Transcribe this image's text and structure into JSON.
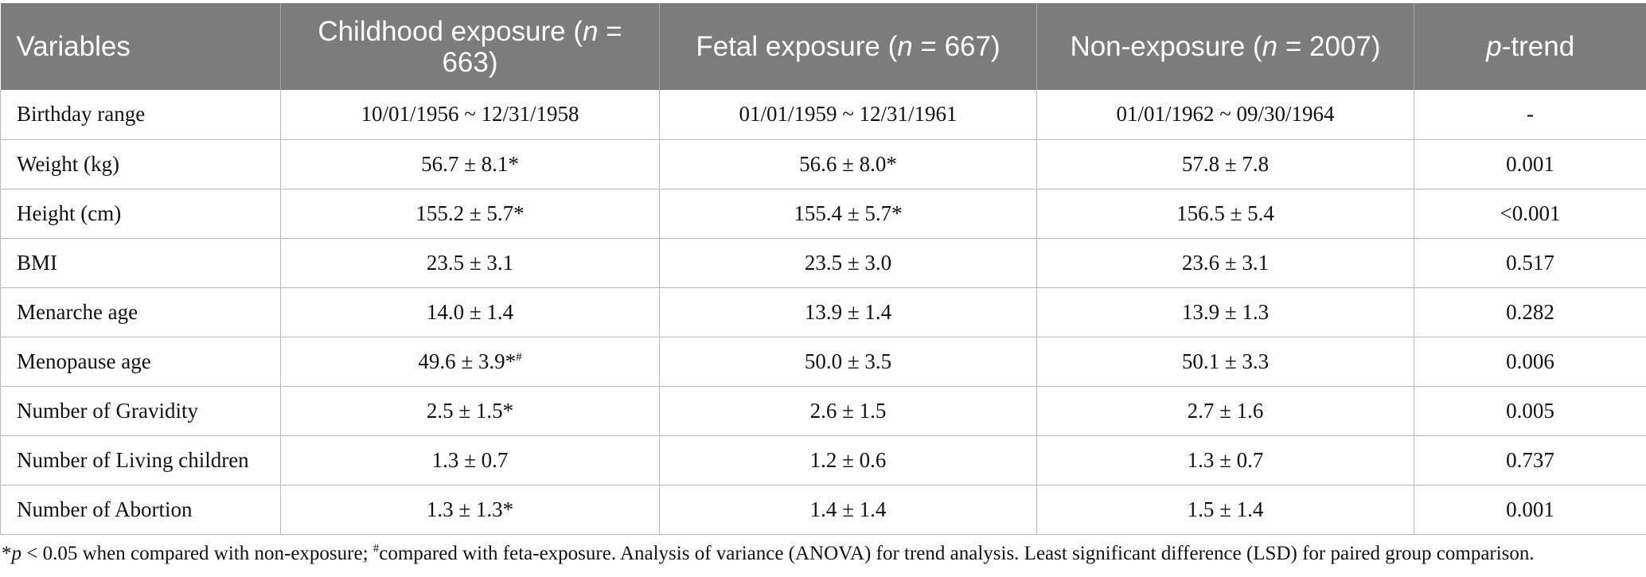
{
  "table": {
    "headers": [
      {
        "pre": "Variables",
        "italic": "",
        "post": ""
      },
      {
        "pre": "Childhood exposure (",
        "italic": "n",
        "post": " = 663)"
      },
      {
        "pre": "Fetal exposure (",
        "italic": "n",
        "post": " = 667)"
      },
      {
        "pre": "Non-exposure (",
        "italic": "n",
        "post": " = 2007)"
      },
      {
        "pre": "",
        "italic": "p",
        "post": "-trend"
      }
    ],
    "rows": [
      [
        "Birthday range",
        "10/01/1956 ~ 12/31/1958",
        "01/01/1959 ~ 12/31/1961",
        "01/01/1962 ~ 09/30/1964",
        "-"
      ],
      [
        "Weight (kg)",
        "56.7 ± 8.1*",
        "56.6 ± 8.0*",
        "57.8 ± 7.8",
        "0.001"
      ],
      [
        "Height (cm)",
        "155.2 ± 5.7*",
        "155.4 ± 5.7*",
        "156.5 ± 5.4",
        "<0.001"
      ],
      [
        "BMI",
        "23.5 ± 3.1",
        "23.5 ± 3.0",
        "23.6 ± 3.1",
        "0.517"
      ],
      [
        "Menarche age",
        "14.0 ± 1.4",
        "13.9 ± 1.4",
        "13.9 ± 1.3",
        "0.282"
      ],
      [
        "Menopause age",
        "49.6 ± 3.9*#",
        "50.0 ± 3.5",
        "50.1 ± 3.3",
        "0.006"
      ],
      [
        "Number of Gravidity",
        "2.5 ± 1.5*",
        "2.6 ± 1.5",
        "2.7 ± 1.6",
        "0.005"
      ],
      [
        "Number of Living children",
        "1.3 ± 0.7",
        "1.2 ± 0.6",
        "1.3 ± 0.7",
        "0.737"
      ],
      [
        "Number of Abortion",
        "1.3 ± 1.3*",
        "1.4 ± 1.4",
        "1.5 ± 1.4",
        "0.001"
      ]
    ]
  },
  "footnote": {
    "star": "*",
    "p": "p",
    "part1": " < 0.05 when compared with non-exposure; ",
    "hash": "#",
    "part2": "compared with feta-exposure. Analysis of variance (ANOVA) for trend analysis. Least significant difference (LSD) for paired group comparison."
  },
  "colors": {
    "header_bg": "#7c7c7c",
    "header_text": "#ffffff",
    "grid": "#b9b9b9"
  }
}
